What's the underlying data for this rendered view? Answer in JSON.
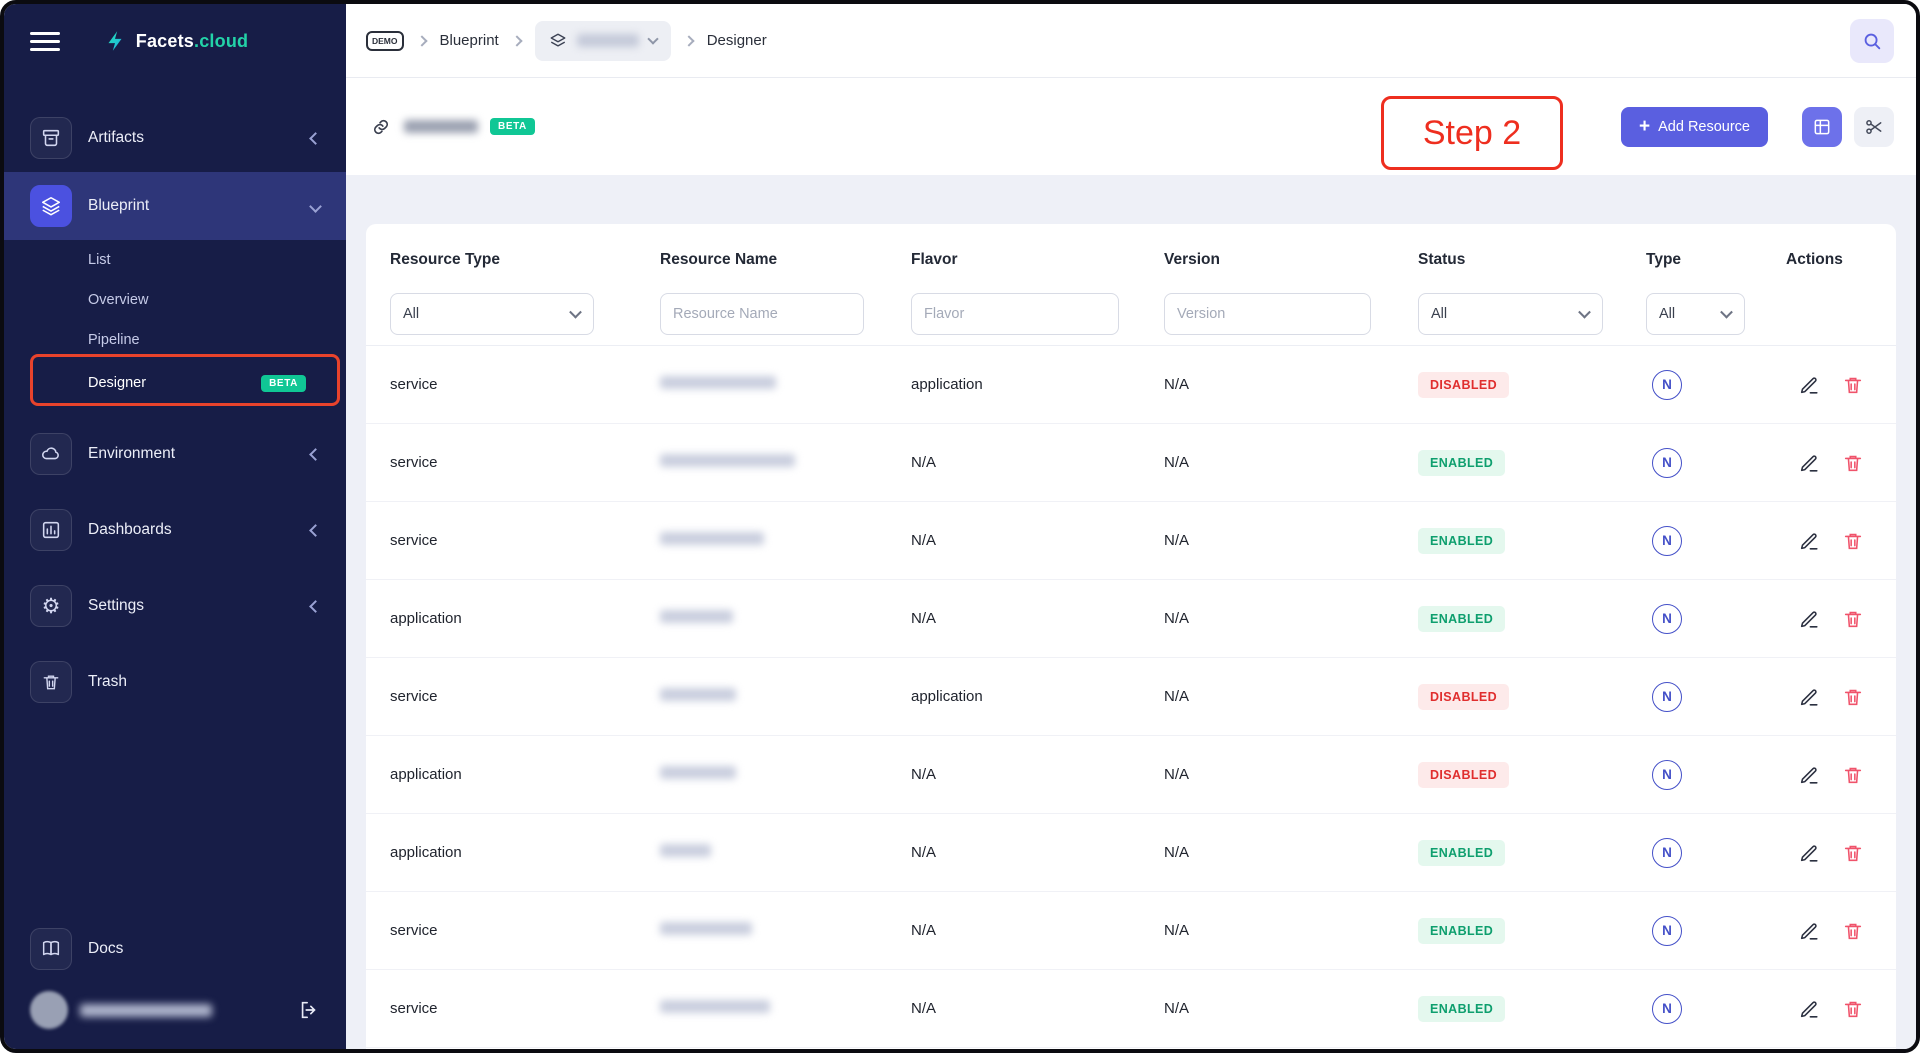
{
  "annotations": {
    "step_label": "Step 2"
  },
  "colors": {
    "accent": "#5a5fe0",
    "beta": "#10c795",
    "sidebar_bg": "#171d47",
    "sidebar_active_bg": "#2e3679",
    "annotation_red": "#ee2e1f",
    "status_enabled_text": "#0e9f6e",
    "status_enabled_bg": "#e4f8ee",
    "status_disabled_text": "#e02e2e",
    "status_disabled_bg": "#fdeaea",
    "type_badge_color": "#4450c8"
  },
  "sidebar": {
    "brand": {
      "name": "Facets",
      "suffix": ".cloud"
    },
    "items": [
      {
        "label": "Artifacts"
      },
      {
        "label": "Blueprint"
      },
      {
        "label": "Environment"
      },
      {
        "label": "Dashboards"
      },
      {
        "label": "Settings"
      },
      {
        "label": "Trash"
      }
    ],
    "blueprint_submenu": [
      {
        "label": "List"
      },
      {
        "label": "Overview"
      },
      {
        "label": "Pipeline"
      },
      {
        "label": "Designer",
        "badge": "BETA"
      }
    ],
    "docs_label": "Docs"
  },
  "topbar": {
    "breadcrumb": {
      "env_badge": "DEMO",
      "section": "Blueprint",
      "page": "Designer"
    }
  },
  "page_header": {
    "beta_badge": "BETA",
    "add_resource_label": "Add Resource"
  },
  "table": {
    "columns": [
      "Resource Type",
      "Resource Name",
      "Flavor",
      "Version",
      "Status",
      "Type",
      "Actions"
    ],
    "filters": {
      "resource_type_value": "All",
      "resource_name_placeholder": "Resource Name",
      "flavor_placeholder": "Flavor",
      "version_placeholder": "Version",
      "status_value": "All",
      "type_value": "All"
    },
    "rows": [
      {
        "resource_type": "service",
        "flavor": "application",
        "version": "N/A",
        "status": "DISABLED",
        "type": "N"
      },
      {
        "resource_type": "service",
        "flavor": "N/A",
        "version": "N/A",
        "status": "ENABLED",
        "type": "N"
      },
      {
        "resource_type": "service",
        "flavor": "N/A",
        "version": "N/A",
        "status": "ENABLED",
        "type": "N"
      },
      {
        "resource_type": "application",
        "flavor": "N/A",
        "version": "N/A",
        "status": "ENABLED",
        "type": "N"
      },
      {
        "resource_type": "service",
        "flavor": "application",
        "version": "N/A",
        "status": "DISABLED",
        "type": "N"
      },
      {
        "resource_type": "application",
        "flavor": "N/A",
        "version": "N/A",
        "status": "DISABLED",
        "type": "N"
      },
      {
        "resource_type": "application",
        "flavor": "N/A",
        "version": "N/A",
        "status": "ENABLED",
        "type": "N"
      },
      {
        "resource_type": "service",
        "flavor": "N/A",
        "version": "N/A",
        "status": "ENABLED",
        "type": "N"
      },
      {
        "resource_type": "service",
        "flavor": "N/A",
        "version": "N/A",
        "status": "ENABLED",
        "type": "N"
      }
    ]
  }
}
